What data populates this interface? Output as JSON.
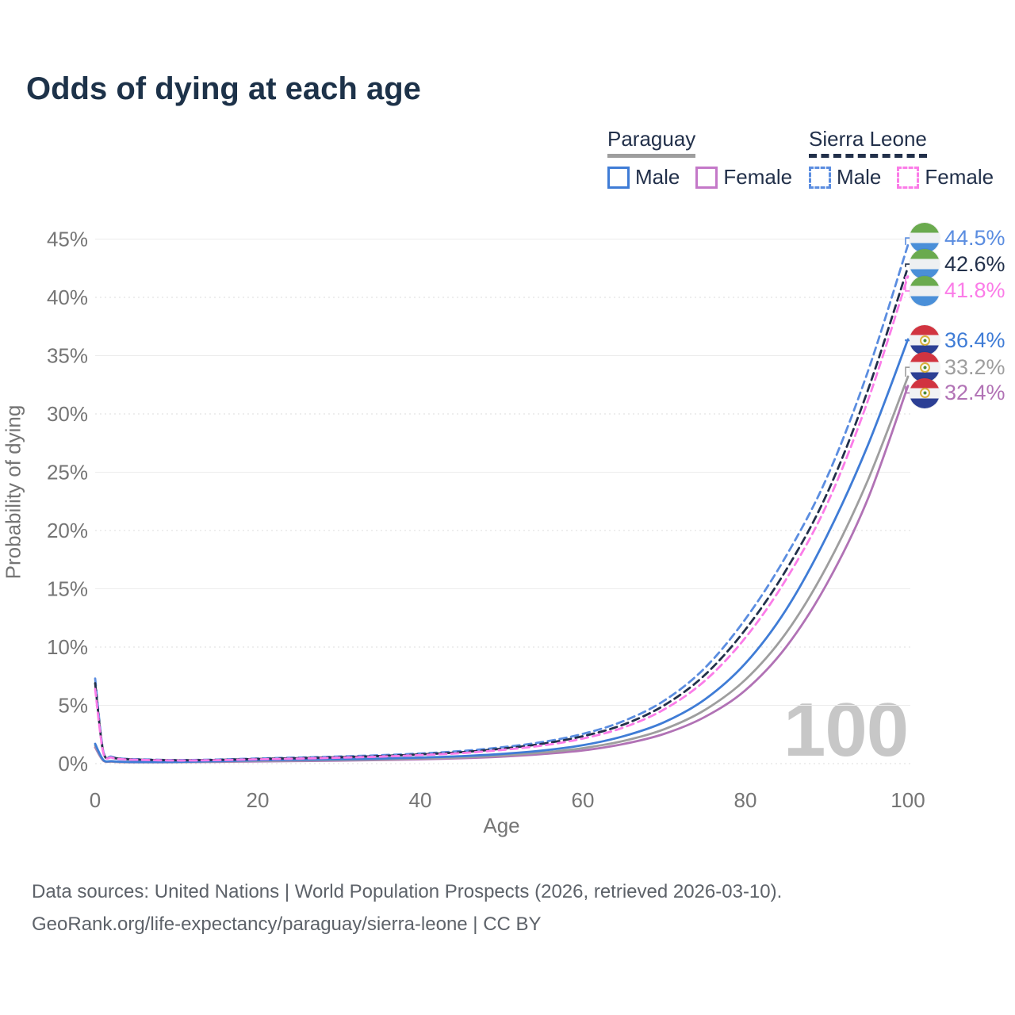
{
  "title": "Odds of dying at each age",
  "legend": {
    "paraguay": {
      "name": "Paraguay",
      "male": "Male",
      "female": "Female"
    },
    "sierra_leone": {
      "name": "Sierra Leone",
      "male": "Male",
      "female": "Female"
    }
  },
  "watermark": "100",
  "footer": {
    "line1": "Data sources: United Nations | World Population Prospects (2026, retrieved 2026-03-10).",
    "line2": "GeoRank.org/life-expectancy/paraguay/sierra-leone | CC BY"
  },
  "colors": {
    "title_text": "#1d3249",
    "axis_text": "#757575",
    "grid_solid": "#ececec",
    "grid_dotted": "#dcdcdc",
    "watermark": "#c7c7c7",
    "paraguay_male": "#3f7cd6",
    "paraguay_female": "#b172b5",
    "paraguay_all": "#9e9e9e",
    "sierra_leone_male": "#5b8de0",
    "sierra_leone_female": "#fb7ce8",
    "sierra_leone_all": "#22304a"
  },
  "chart_data": {
    "type": "line",
    "title": "Odds of dying at each age",
    "xlabel": "Age",
    "ylabel": "Probability of dying",
    "xlim": [
      0,
      100
    ],
    "ylim": [
      0,
      45
    ],
    "x_ticks": [
      0,
      20,
      40,
      60,
      80,
      100
    ],
    "y_ticks": [
      0,
      5,
      10,
      15,
      20,
      25,
      30,
      35,
      40,
      45
    ],
    "y_tick_suffix": "%",
    "grid": true,
    "legend_position": "top-right",
    "x": [
      0,
      1,
      2,
      3,
      5,
      10,
      15,
      20,
      25,
      30,
      35,
      40,
      45,
      50,
      55,
      60,
      65,
      70,
      75,
      80,
      85,
      90,
      95,
      100
    ],
    "series": [
      {
        "name": "Paraguay Female",
        "country": "Paraguay",
        "sex": "Female",
        "color": "#b172b5",
        "dash": "solid",
        "values": [
          1.4,
          0.25,
          0.17,
          0.13,
          0.11,
          0.12,
          0.15,
          0.19,
          0.22,
          0.26,
          0.31,
          0.37,
          0.46,
          0.6,
          0.82,
          1.13,
          1.68,
          2.55,
          4.0,
          6.3,
          10.0,
          15.4,
          22.6,
          32.4
        ],
        "end_label": {
          "text": "32.4%",
          "flag": "paraguay",
          "label_y_pct": 31.8
        }
      },
      {
        "name": "Paraguay Both sexes",
        "country": "Paraguay",
        "sex": "Both",
        "color": "#9e9e9e",
        "dash": "solid",
        "values": [
          1.55,
          0.28,
          0.19,
          0.15,
          0.13,
          0.13,
          0.18,
          0.24,
          0.27,
          0.31,
          0.36,
          0.44,
          0.54,
          0.7,
          0.95,
          1.33,
          1.95,
          2.95,
          4.6,
          7.2,
          11.2,
          16.9,
          24.2,
          33.2
        ],
        "end_label": {
          "text": "33.2%",
          "flag": "paraguay",
          "label_y_pct": 34.0
        }
      },
      {
        "name": "Paraguay Male",
        "country": "Paraguay",
        "sex": "Male",
        "color": "#3f7cd6",
        "dash": "solid",
        "values": [
          1.7,
          0.32,
          0.21,
          0.17,
          0.14,
          0.15,
          0.21,
          0.29,
          0.33,
          0.37,
          0.43,
          0.52,
          0.64,
          0.83,
          1.12,
          1.58,
          2.35,
          3.55,
          5.5,
          8.6,
          13.2,
          19.5,
          27.2,
          36.4
        ],
        "end_label": {
          "text": "36.4%",
          "flag": "paraguay",
          "label_y_pct": 36.3
        }
      },
      {
        "name": "Sierra Leone Male",
        "country": "Sierra Leone",
        "sex": "Male",
        "color": "#5b8de0",
        "dash": "dashed",
        "values": [
          7.3,
          1.05,
          0.6,
          0.45,
          0.38,
          0.31,
          0.35,
          0.44,
          0.52,
          0.61,
          0.72,
          0.87,
          1.08,
          1.4,
          1.85,
          2.55,
          3.65,
          5.4,
          8.2,
          12.4,
          17.8,
          24.5,
          33.5,
          44.5
        ],
        "end_label": {
          "text": "44.5%",
          "flag": "sierra-leone",
          "label_y_pct": 45.1
        }
      },
      {
        "name": "Sierra Leone Both sexes",
        "country": "Sierra Leone",
        "sex": "Both",
        "color": "#22304a",
        "dash": "dashed",
        "values": [
          6.9,
          0.98,
          0.55,
          0.42,
          0.35,
          0.29,
          0.32,
          0.4,
          0.47,
          0.55,
          0.65,
          0.79,
          0.98,
          1.28,
          1.7,
          2.35,
          3.35,
          5.0,
          7.6,
          11.5,
          16.6,
          23.1,
          31.9,
          42.6
        ],
        "end_label": {
          "text": "42.6%",
          "flag": "sierra-leone",
          "label_y_pct": 42.85
        }
      },
      {
        "name": "Sierra Leone Female",
        "country": "Sierra Leone",
        "sex": "Female",
        "color": "#fb7ce8",
        "dash": "dashed",
        "values": [
          6.4,
          0.92,
          0.52,
          0.39,
          0.33,
          0.27,
          0.3,
          0.37,
          0.43,
          0.51,
          0.6,
          0.73,
          0.9,
          1.17,
          1.55,
          2.15,
          3.1,
          4.65,
          7.1,
          10.8,
          15.8,
          22.2,
          31.0,
          41.8
        ],
        "end_label": {
          "text": "41.8%",
          "flag": "sierra-leone",
          "label_y_pct": 40.55
        }
      }
    ]
  }
}
